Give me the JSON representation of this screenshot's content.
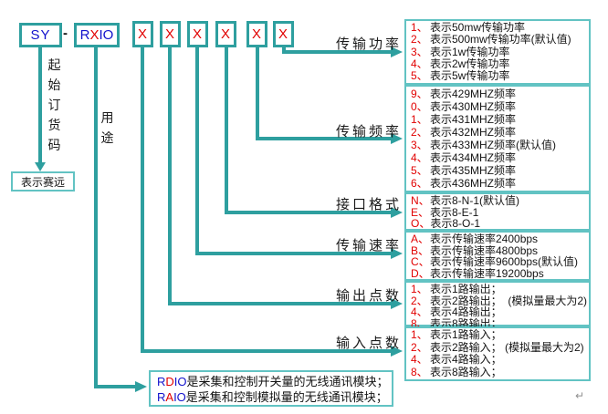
{
  "code": {
    "prefix": "SY",
    "separator": "-",
    "model_letters": [
      {
        "ch": "R"
      },
      {
        "ch": "X"
      },
      {
        "ch": "I"
      },
      {
        "ch": "O"
      }
    ],
    "x_placeholder": "X",
    "x_count": 6
  },
  "left_branch": {
    "vertical_label": "起始订货码",
    "result_box": "表示赛远"
  },
  "usage_branch": {
    "vertical_label": "用途",
    "note_lines": [
      {
        "lead": "R",
        "mid": "D",
        "tail": "IO",
        "rest": "是采集和控制开关量的无线通讯模块；"
      },
      {
        "lead": "R",
        "mid": "A",
        "tail": "IO",
        "rest": "是采集和控制模拟量的无线通讯模块；"
      }
    ]
  },
  "groups": [
    {
      "label": "传输功率",
      "items": [
        {
          "key": "1、",
          "text": "表示50mw传输功率"
        },
        {
          "key": "2、",
          "text": "表示500mw传输功率(默认值)"
        },
        {
          "key": "3、",
          "text": "表示1w传输功率"
        },
        {
          "key": "4、",
          "text": "表示2w传输功率"
        },
        {
          "key": "5、",
          "text": "表示5w传输功率"
        }
      ]
    },
    {
      "label": "传输频率",
      "items": [
        {
          "key": "9、",
          "text": "表示429MHZ频率"
        },
        {
          "key": "0、",
          "text": "表示430MHZ频率"
        },
        {
          "key": "1、",
          "text": "表示431MHZ频率"
        },
        {
          "key": "2、",
          "text": "表示432MHZ频率"
        },
        {
          "key": "3、",
          "text": "表示433MHZ频率(默认值)"
        },
        {
          "key": "4、",
          "text": "表示434MHZ频率"
        },
        {
          "key": "5、",
          "text": "表示435MHZ频率"
        },
        {
          "key": "6、",
          "text": "表示436MHZ频率"
        }
      ]
    },
    {
      "label": "接口格式",
      "items": [
        {
          "key": "N、",
          "text": "表示8-N-1(默认值)"
        },
        {
          "key": "E、",
          "text": "表示8-E-1"
        },
        {
          "key": "O、",
          "text": "表示8-O-1"
        }
      ]
    },
    {
      "label": "传输速率",
      "items": [
        {
          "key": "A、",
          "text": "表示传输速率2400bps"
        },
        {
          "key": "B、",
          "text": "表示传输速率4800bps"
        },
        {
          "key": "C、",
          "text": "表示传输速率9600bps(默认值)"
        },
        {
          "key": "D、",
          "text": "表示传输速率19200bps"
        }
      ]
    },
    {
      "label": "输出点数",
      "items": [
        {
          "key": "1、",
          "text": "表示1路输出；"
        },
        {
          "key": "2、",
          "text": "表示2路输出；  (模拟量最大为2)"
        },
        {
          "key": "4、",
          "text": "表示4路输出；"
        },
        {
          "key": "8、",
          "text": "表示8路输出；"
        }
      ]
    },
    {
      "label": "输入点数",
      "items": [
        {
          "key": "1、",
          "text": "表示1路输入；"
        },
        {
          "key": "2、",
          "text": "表示2路输入； (模拟量最大为2)"
        },
        {
          "key": "4、",
          "text": "表示4路输入；"
        },
        {
          "key": "8、",
          "text": "表示8路输入；"
        }
      ]
    }
  ],
  "misc": {
    "return_mark": "↵"
  },
  "colors": {
    "line_teal": "#2e9f9f",
    "box_border_teal": "#62c3c3",
    "highlight_red": "#e10000",
    "code_blue": "#1111cc",
    "text_black": "#141414"
  }
}
